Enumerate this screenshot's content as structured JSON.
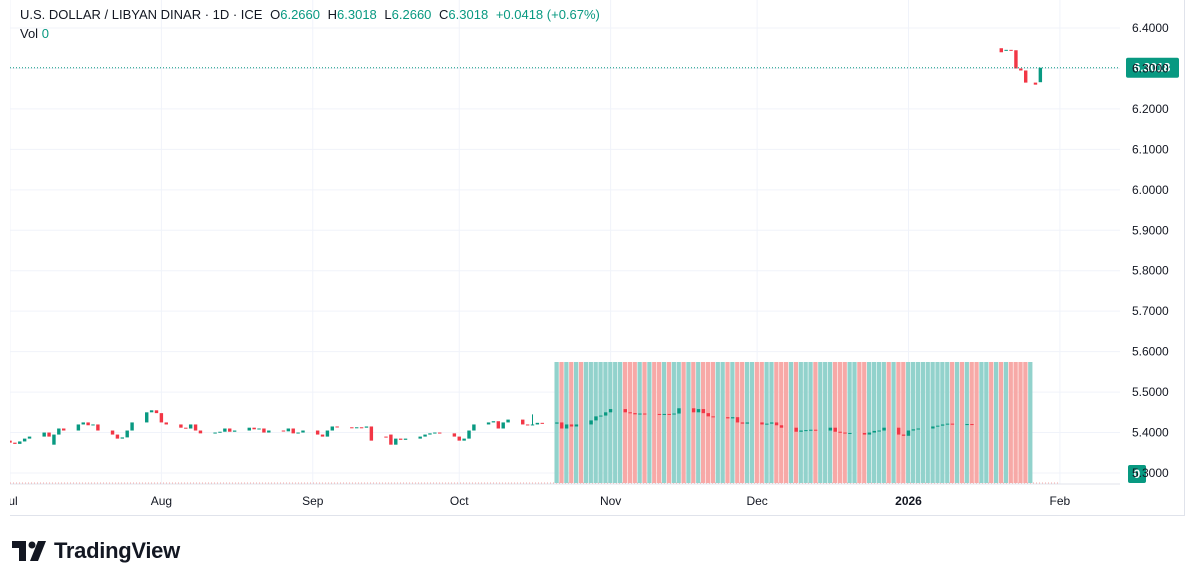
{
  "header": {
    "symbol": "U.S. DOLLAR / LIBYAN DINAR · 1D · ICE",
    "o_label": "O",
    "o_value": "6.2660",
    "h_label": "H",
    "h_value": "6.3018",
    "l_label": "L",
    "l_value": "6.2660",
    "c_label": "C",
    "c_value": "6.3018",
    "change": "+0.0418 (+0.67%)",
    "vol_label": "Vol",
    "vol_value": "0"
  },
  "brand": {
    "name": "TradingView"
  },
  "colors": {
    "up": "#089981",
    "down": "#f23645",
    "vol_up": "#92d2cc",
    "vol_down": "#f7a9a7",
    "grid": "#f0f3fa",
    "text": "#131722"
  },
  "chart_data": {
    "type": "candlestick",
    "title": "U.S. DOLLAR / LIBYAN DINAR · 1D · ICE",
    "y_axis": {
      "min": 5.27,
      "max": 6.43,
      "ticks": [
        "6.4000",
        "6.3000",
        "6.2000",
        "6.1000",
        "6.0000",
        "5.9000",
        "5.8000",
        "5.7000",
        "5.6000",
        "5.5000",
        "5.4000",
        "5.3000"
      ],
      "position": "right"
    },
    "x_axis": {
      "ticks": [
        "Jul",
        "Aug",
        "Sep",
        "Oct",
        "Nov",
        "Dec",
        "2026",
        "Feb"
      ],
      "bold_ticks": [
        "2026"
      ],
      "tick_days": [
        0,
        31,
        62,
        92,
        123,
        153,
        184,
        215
      ]
    },
    "last_price": {
      "value": 6.3018,
      "label": "6.3018"
    },
    "volume_label": "0",
    "volume_start_day": 112,
    "volume_end_day": 209,
    "candles": [
      {
        "d": 0,
        "o": 5.38,
        "c": 5.375
      },
      {
        "d": 1,
        "o": 5.375,
        "c": 5.372
      },
      {
        "d": 2,
        "o": 5.372,
        "c": 5.378
      },
      {
        "d": 3,
        "o": 5.378,
        "c": 5.385
      },
      {
        "d": 4,
        "o": 5.385,
        "c": 5.39
      },
      {
        "d": 7,
        "o": 5.39,
        "c": 5.4
      },
      {
        "d": 8,
        "o": 5.4,
        "c": 5.39
      },
      {
        "d": 9,
        "o": 5.37,
        "c": 5.395
      },
      {
        "d": 10,
        "o": 5.395,
        "c": 5.41
      },
      {
        "d": 11,
        "o": 5.41,
        "c": 5.405
      },
      {
        "d": 14,
        "o": 5.405,
        "c": 5.42
      },
      {
        "d": 15,
        "o": 5.42,
        "c": 5.425
      },
      {
        "d": 16,
        "o": 5.425,
        "c": 5.418
      },
      {
        "d": 17,
        "o": 5.418,
        "c": 5.42
      },
      {
        "d": 18,
        "o": 5.42,
        "c": 5.405
      },
      {
        "d": 21,
        "o": 5.405,
        "c": 5.395
      },
      {
        "d": 22,
        "o": 5.395,
        "c": 5.385
      },
      {
        "d": 23,
        "o": 5.385,
        "c": 5.388
      },
      {
        "d": 24,
        "o": 5.388,
        "c": 5.405
      },
      {
        "d": 25,
        "o": 5.405,
        "c": 5.425
      },
      {
        "d": 28,
        "o": 5.425,
        "c": 5.45
      },
      {
        "d": 29,
        "o": 5.45,
        "c": 5.455
      },
      {
        "d": 30,
        "o": 5.455,
        "c": 5.448
      },
      {
        "d": 31,
        "o": 5.448,
        "c": 5.425
      },
      {
        "d": 32,
        "o": 5.425,
        "c": 5.42
      },
      {
        "d": 35,
        "o": 5.42,
        "c": 5.412
      },
      {
        "d": 36,
        "o": 5.412,
        "c": 5.41
      },
      {
        "d": 37,
        "o": 5.41,
        "c": 5.42
      },
      {
        "d": 38,
        "o": 5.42,
        "c": 5.405
      },
      {
        "d": 39,
        "o": 5.405,
        "c": 5.398
      },
      {
        "d": 42,
        "o": 5.398,
        "c": 5.4
      },
      {
        "d": 43,
        "o": 5.4,
        "c": 5.402
      },
      {
        "d": 44,
        "o": 5.402,
        "c": 5.41
      },
      {
        "d": 45,
        "o": 5.41,
        "c": 5.402
      },
      {
        "d": 46,
        "o": 5.402,
        "c": 5.405
      },
      {
        "d": 49,
        "o": 5.405,
        "c": 5.412
      },
      {
        "d": 50,
        "o": 5.412,
        "c": 5.408
      },
      {
        "d": 51,
        "o": 5.408,
        "c": 5.41
      },
      {
        "d": 52,
        "o": 5.41,
        "c": 5.4
      },
      {
        "d": 53,
        "o": 5.4,
        "c": 5.405
      },
      {
        "d": 56,
        "o": 5.405,
        "c": 5.403
      },
      {
        "d": 57,
        "o": 5.403,
        "c": 5.41
      },
      {
        "d": 58,
        "o": 5.41,
        "c": 5.398
      },
      {
        "d": 59,
        "o": 5.398,
        "c": 5.4
      },
      {
        "d": 60,
        "o": 5.4,
        "c": 5.405
      },
      {
        "d": 63,
        "o": 5.405,
        "c": 5.395
      },
      {
        "d": 64,
        "o": 5.395,
        "c": 5.39
      },
      {
        "d": 65,
        "o": 5.39,
        "c": 5.405
      },
      {
        "d": 66,
        "o": 5.405,
        "c": 5.415
      },
      {
        "d": 67,
        "o": 5.415,
        "c": 5.413
      },
      {
        "d": 70,
        "o": 5.413,
        "c": 5.412
      },
      {
        "d": 71,
        "o": 5.412,
        "c": 5.413
      },
      {
        "d": 72,
        "o": 5.413,
        "c": 5.412
      },
      {
        "d": 73,
        "o": 5.412,
        "c": 5.415
      },
      {
        "d": 74,
        "o": 5.415,
        "c": 5.38
      },
      {
        "d": 77,
        "o": 5.39,
        "c": 5.388
      },
      {
        "d": 78,
        "o": 5.395,
        "c": 5.37
      },
      {
        "d": 79,
        "o": 5.37,
        "c": 5.385
      },
      {
        "d": 80,
        "o": 5.385,
        "c": 5.382
      },
      {
        "d": 81,
        "o": 5.382,
        "c": 5.385
      },
      {
        "d": 84,
        "o": 5.385,
        "c": 5.39
      },
      {
        "d": 85,
        "o": 5.39,
        "c": 5.395
      },
      {
        "d": 86,
        "o": 5.395,
        "c": 5.398
      },
      {
        "d": 87,
        "o": 5.398,
        "c": 5.4
      },
      {
        "d": 88,
        "o": 5.4,
        "c": 5.398
      },
      {
        "d": 91,
        "o": 5.398,
        "c": 5.39
      },
      {
        "d": 92,
        "o": 5.39,
        "c": 5.38
      },
      {
        "d": 93,
        "o": 5.38,
        "c": 5.385
      },
      {
        "d": 94,
        "o": 5.385,
        "c": 5.405
      },
      {
        "d": 95,
        "o": 5.405,
        "c": 5.42
      },
      {
        "d": 98,
        "o": 5.42,
        "c": 5.425
      },
      {
        "d": 99,
        "o": 5.425,
        "c": 5.428
      },
      {
        "d": 100,
        "o": 5.428,
        "c": 5.41
      },
      {
        "d": 101,
        "o": 5.41,
        "c": 5.425
      },
      {
        "d": 102,
        "o": 5.425,
        "c": 5.432
      },
      {
        "d": 105,
        "o": 5.432,
        "c": 5.42
      },
      {
        "d": 106,
        "o": 5.42,
        "c": 5.418
      },
      {
        "d": 107,
        "o": 5.418,
        "c": 5.42,
        "h": 5.445
      },
      {
        "d": 108,
        "o": 5.42,
        "c": 5.424
      },
      {
        "d": 109,
        "o": 5.424,
        "c": 5.422
      },
      {
        "d": 112,
        "o": 5.422,
        "c": 5.425
      },
      {
        "d": 113,
        "o": 5.425,
        "c": 5.41
      },
      {
        "d": 114,
        "o": 5.41,
        "c": 5.42
      },
      {
        "d": 115,
        "o": 5.42,
        "c": 5.415
      },
      {
        "d": 116,
        "o": 5.415,
        "c": 5.42
      },
      {
        "d": 119,
        "o": 5.42,
        "c": 5.43
      },
      {
        "d": 120,
        "o": 5.43,
        "c": 5.44
      },
      {
        "d": 121,
        "o": 5.44,
        "c": 5.442
      },
      {
        "d": 122,
        "o": 5.442,
        "c": 5.45
      },
      {
        "d": 123,
        "o": 5.45,
        "c": 5.458
      },
      {
        "d": 126,
        "o": 5.458,
        "c": 5.45
      },
      {
        "d": 127,
        "o": 5.45,
        "c": 5.448
      },
      {
        "d": 128,
        "o": 5.448,
        "c": 5.445
      },
      {
        "d": 129,
        "o": 5.445,
        "c": 5.447
      },
      {
        "d": 130,
        "o": 5.447,
        "c": 5.446
      },
      {
        "d": 133,
        "o": 5.446,
        "c": 5.445
      },
      {
        "d": 134,
        "o": 5.445,
        "c": 5.446
      },
      {
        "d": 135,
        "o": 5.446,
        "c": 5.445
      },
      {
        "d": 136,
        "o": 5.445,
        "c": 5.447
      },
      {
        "d": 137,
        "o": 5.447,
        "c": 5.46
      },
      {
        "d": 140,
        "o": 5.46,
        "c": 5.45
      },
      {
        "d": 141,
        "o": 5.45,
        "c": 5.458
      },
      {
        "d": 142,
        "o": 5.458,
        "c": 5.448
      },
      {
        "d": 143,
        "o": 5.448,
        "c": 5.44
      },
      {
        "d": 144,
        "o": 5.44,
        "c": 5.438
      },
      {
        "d": 147,
        "o": 5.438,
        "c": 5.435
      },
      {
        "d": 148,
        "o": 5.435,
        "c": 5.438
      },
      {
        "d": 149,
        "o": 5.438,
        "c": 5.425
      },
      {
        "d": 150,
        "o": 5.425,
        "c": 5.422
      },
      {
        "d": 151,
        "o": 5.422,
        "c": 5.425
      },
      {
        "d": 154,
        "o": 5.425,
        "c": 5.42
      },
      {
        "d": 155,
        "o": 5.42,
        "c": 5.422
      },
      {
        "d": 156,
        "o": 5.422,
        "c": 5.425
      },
      {
        "d": 157,
        "o": 5.425,
        "c": 5.418
      },
      {
        "d": 158,
        "o": 5.418,
        "c": 5.412
      },
      {
        "d": 161,
        "o": 5.412,
        "c": 5.402
      },
      {
        "d": 162,
        "o": 5.402,
        "c": 5.405
      },
      {
        "d": 163,
        "o": 5.405,
        "c": 5.406
      },
      {
        "d": 164,
        "o": 5.406,
        "c": 5.407
      },
      {
        "d": 165,
        "o": 5.407,
        "c": 5.405
      },
      {
        "d": 168,
        "o": 5.405,
        "c": 5.412
      },
      {
        "d": 169,
        "o": 5.412,
        "c": 5.402
      },
      {
        "d": 170,
        "o": 5.402,
        "c": 5.4
      },
      {
        "d": 171,
        "o": 5.4,
        "c": 5.398
      },
      {
        "d": 172,
        "o": 5.398,
        "c": 5.399
      },
      {
        "d": 175,
        "o": 5.399,
        "c": 5.395
      },
      {
        "d": 176,
        "o": 5.395,
        "c": 5.4
      },
      {
        "d": 177,
        "o": 5.4,
        "c": 5.404
      },
      {
        "d": 178,
        "o": 5.404,
        "c": 5.405
      },
      {
        "d": 179,
        "o": 5.405,
        "c": 5.412
      },
      {
        "d": 182,
        "o": 5.412,
        "c": 5.395
      },
      {
        "d": 183,
        "o": 5.395,
        "c": 5.392
      },
      {
        "d": 184,
        "o": 5.392,
        "c": 5.405
      },
      {
        "d": 185,
        "o": 5.405,
        "c": 5.408
      },
      {
        "d": 186,
        "o": 5.408,
        "c": 5.41
      },
      {
        "d": 189,
        "o": 5.41,
        "c": 5.415
      },
      {
        "d": 190,
        "o": 5.415,
        "c": 5.417
      },
      {
        "d": 191,
        "o": 5.417,
        "c": 5.42
      },
      {
        "d": 192,
        "o": 5.42,
        "c": 5.422
      },
      {
        "d": 193,
        "o": 5.422,
        "c": 5.42
      },
      {
        "d": 196,
        "o": 5.42,
        "c": 5.421
      },
      {
        "d": 197,
        "o": 5.421,
        "c": 5.42
      },
      {
        "d": 203,
        "o": 6.35,
        "c": 6.34
      },
      {
        "d": 204,
        "o": 6.345,
        "c": 6.346
      },
      {
        "d": 205,
        "o": 6.346,
        "c": 6.345
      },
      {
        "d": 206,
        "o": 6.345,
        "c": 6.3
      },
      {
        "d": 207,
        "o": 6.3,
        "c": 6.295
      },
      {
        "d": 208,
        "o": 6.295,
        "c": 6.265
      },
      {
        "d": 210,
        "o": 6.265,
        "c": 6.26
      },
      {
        "d": 211,
        "o": 6.266,
        "c": 6.3018
      }
    ]
  }
}
